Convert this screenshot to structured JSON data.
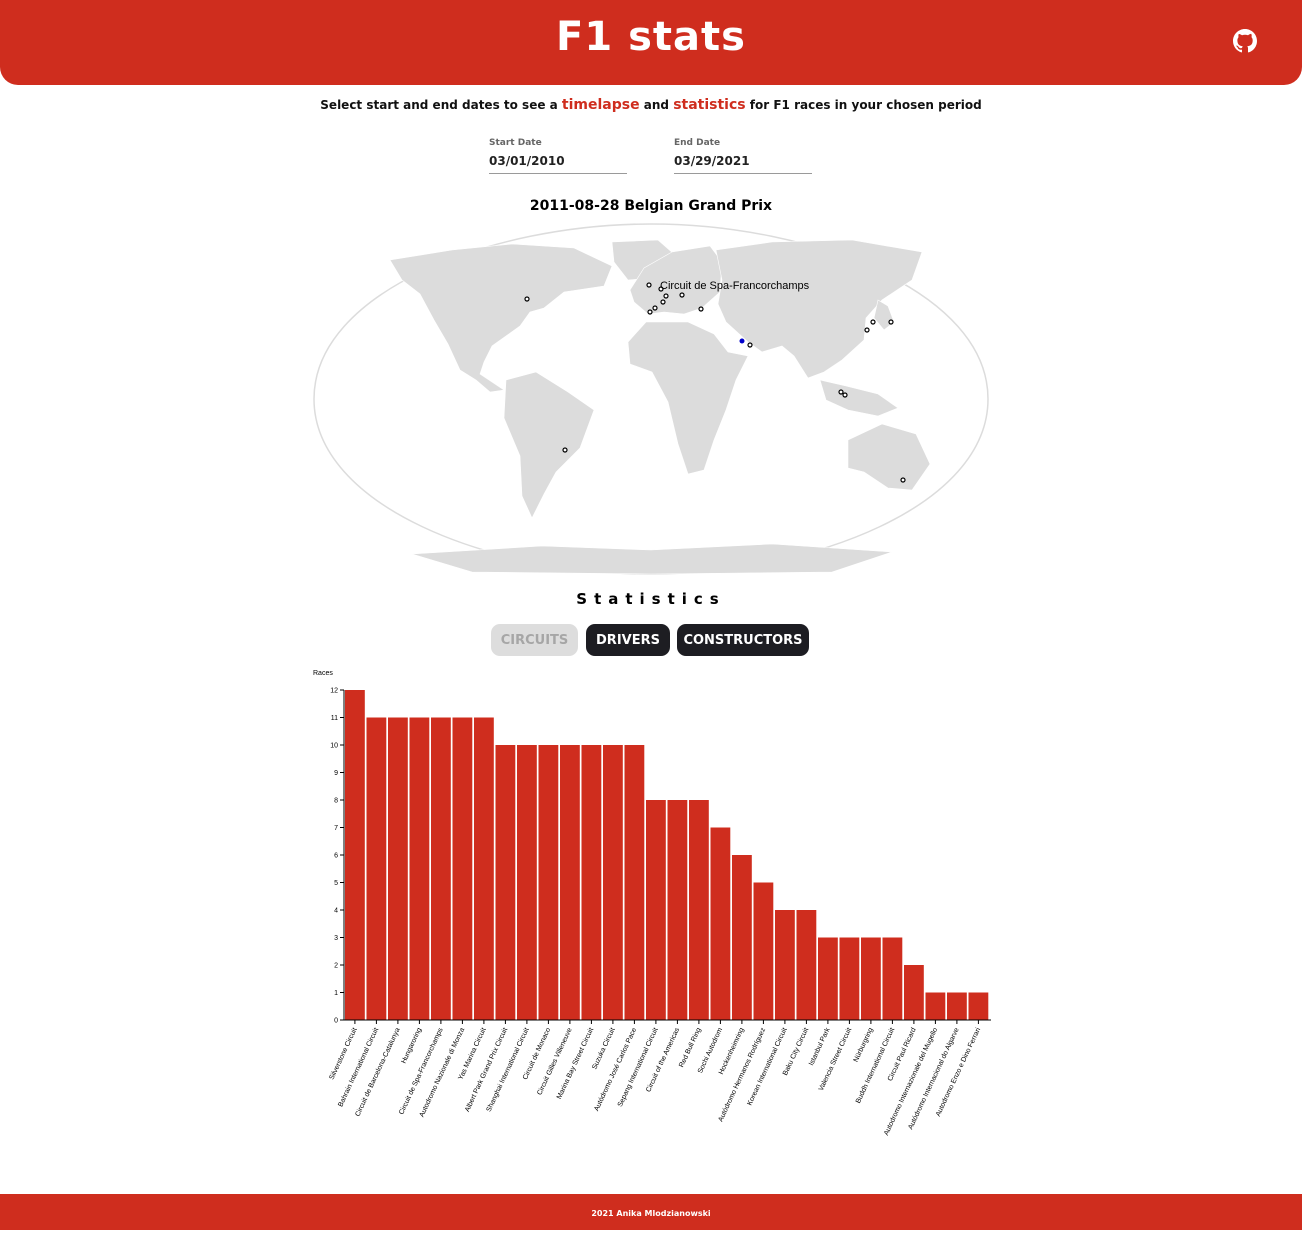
{
  "header": {
    "title": "F1 stats",
    "github_icon": "github-icon"
  },
  "intro": {
    "before": "Select start and end dates to see a ",
    "timelapse": "timelapse",
    "middle": " and ",
    "statistics": "statistics",
    "after": " for F1 races in your chosen period"
  },
  "dates": {
    "start_label": "Start Date",
    "start_value": "03/01/2010",
    "end_label": "End Date",
    "end_value": "03/29/2021"
  },
  "map": {
    "title": "2011-08-28 Belgian Grand Prix",
    "highlight_label": "Circuit de Spa-Francorchamps",
    "marker_color": "#0000cc"
  },
  "stats": {
    "title": "Statistics",
    "tabs": [
      {
        "label": "CIRCUITS",
        "active": false
      },
      {
        "label": "DRIVERS",
        "active": true
      },
      {
        "label": "CONSTRUCTORS",
        "active": true
      }
    ]
  },
  "chart_data": {
    "type": "bar",
    "ylabel": "Races",
    "ylim": [
      0,
      12
    ],
    "yticks": [
      "0",
      "1",
      "2",
      "3",
      "4",
      "5",
      "6",
      "7",
      "8",
      "9",
      "10",
      "11",
      "12"
    ],
    "bar_color": "#cf2d1e",
    "categories": [
      "Silverstone Circuit",
      "Bahrain International Circuit",
      "Circuit de Barcelona-Catalunya",
      "Hungaroring",
      "Circuit de Spa-Francorchamps",
      "Autodromo Nazionale di Monza",
      "Yas Marina Circuit",
      "Albert Park Grand Prix Circuit",
      "Shanghai International Circuit",
      "Circuit de Monaco",
      "Circuit Gilles Villeneuve",
      "Marina Bay Street Circuit",
      "Suzuka Circuit",
      "Autódromo José Carlos Pace",
      "Sepang International Circuit",
      "Circuit of the Americas",
      "Red Bull Ring",
      "Sochi Autodrom",
      "Hockenheimring",
      "Autódromo Hermanos Rodríguez",
      "Korean International Circuit",
      "Baku City Circuit",
      "Istanbul Park",
      "Valencia Street Circuit",
      "Nürburgring",
      "Buddh International Circuit",
      "Circuit Paul Ricard",
      "Autodromo Internazionale del Mugello",
      "Autódromo Internacional do Algarve",
      "Autodromo Enzo e Dino Ferrari"
    ],
    "values": [
      12,
      11,
      11,
      11,
      11,
      11,
      11,
      10,
      10,
      10,
      10,
      10,
      10,
      10,
      8,
      8,
      8,
      7,
      6,
      5,
      4,
      4,
      3,
      3,
      3,
      3,
      2,
      1,
      1,
      1
    ]
  },
  "footer": {
    "text": "2021 Anika Mlodzianowski"
  }
}
